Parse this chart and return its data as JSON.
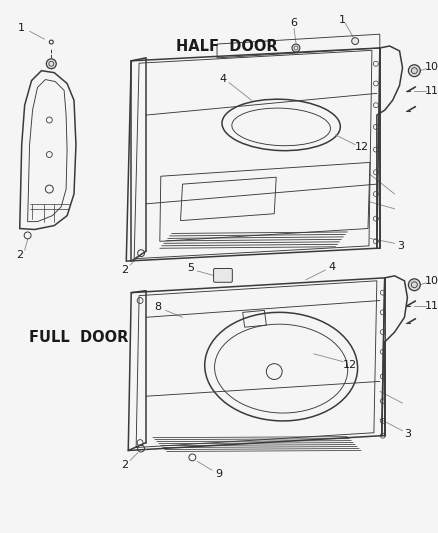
{
  "bg_color": "#f5f5f5",
  "line_color": "#3a3a3a",
  "label_color": "#1a1a1a",
  "callout_color": "#888888",
  "half_door_label": "HALF  DOOR",
  "full_door_label": "FULL  DOOR",
  "section_font_size": 10.5,
  "label_font_size": 8,
  "figw": 4.38,
  "figh": 5.33,
  "dpi": 100
}
